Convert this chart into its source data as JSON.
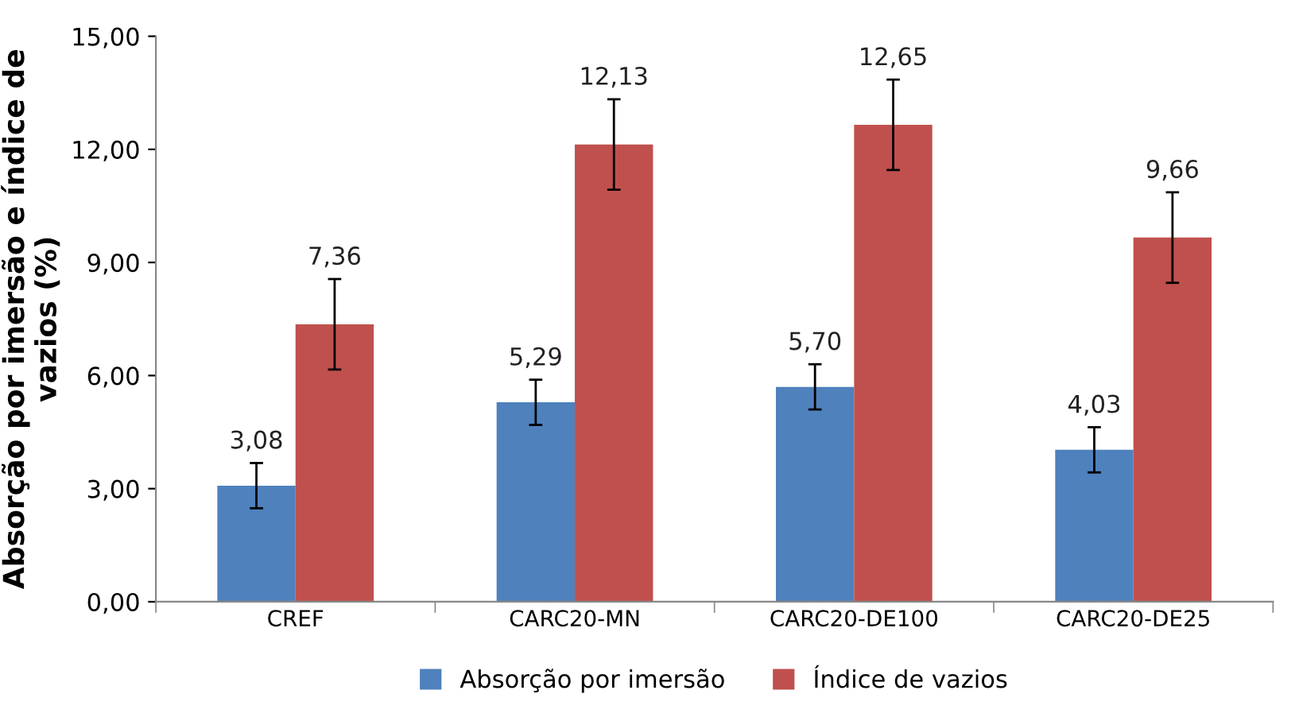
{
  "chart_data": {
    "type": "bar",
    "ylabel": "Absorção por imersão e índice de vazios (%)",
    "categories": [
      "CREF",
      "CARC20-MN",
      "CARC20-DE100",
      "CARC20-DE25"
    ],
    "series": [
      {
        "name": "Absorção por imersão",
        "color": "#4f81bd",
        "values": [
          3.08,
          5.29,
          5.7,
          4.03
        ],
        "errors": [
          0.6,
          0.6,
          0.6,
          0.6
        ],
        "value_labels": [
          "3,08",
          "5,29",
          "5,70",
          "4,03"
        ]
      },
      {
        "name": "Índice de vazios",
        "color": "#c0504d",
        "values": [
          7.36,
          12.13,
          12.65,
          9.66
        ],
        "errors": [
          1.2,
          1.2,
          1.2,
          1.2
        ],
        "value_labels": [
          "7,36",
          "12,13",
          "12,65",
          "9,66"
        ]
      }
    ],
    "ylim": [
      0,
      15
    ],
    "yticks": [
      {
        "value": 0,
        "label": "0,00"
      },
      {
        "value": 3,
        "label": "3,00"
      },
      {
        "value": 6,
        "label": "6,00"
      },
      {
        "value": 9,
        "label": "9,00"
      },
      {
        "value": 12,
        "label": "12,00"
      },
      {
        "value": 15,
        "label": "15,00"
      }
    ],
    "grid": false,
    "legend": "bottom"
  }
}
